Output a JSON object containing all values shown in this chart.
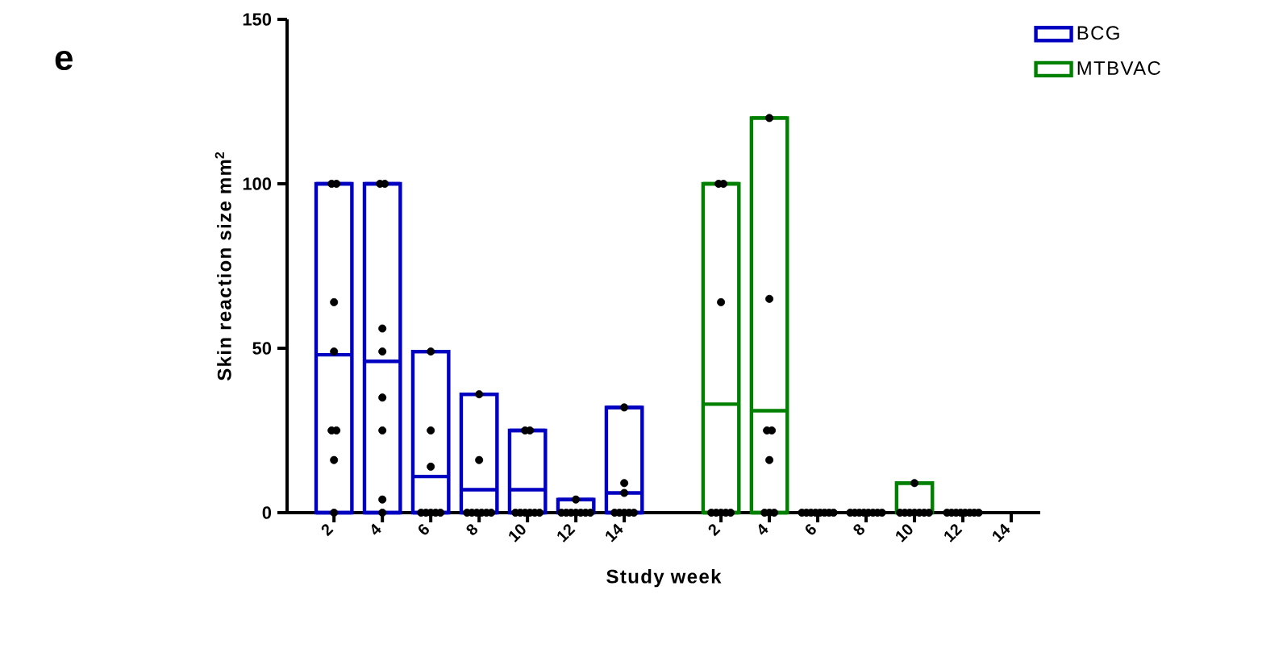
{
  "chart_data": {
    "type": "box",
    "xlabel": "Study week",
    "ylabel": "Skin reaction size mm$^{2}$",
    "annotations": [
      "e"
    ],
    "categories": [
      "2",
      "4",
      "6",
      "8",
      "10",
      "12",
      "14",
      null,
      "2",
      "4",
      "6",
      "8",
      "10",
      "12",
      "14"
    ],
    "ylim": [
      0,
      150
    ],
    "yticks": [
      0,
      50,
      100,
      150
    ],
    "legend": "top right",
    "marker": "circle",
    "series": [
      {
        "name": "BCG",
        "color": "#0000c0",
        "boxes": [
          {
            "low": 0,
            "q1": 0,
            "median": 48,
            "q3": 100,
            "high": 100,
            "outliers": [
              100,
              100,
              64,
              49,
              25,
              25,
              16,
              0
            ]
          },
          {
            "low": 0,
            "q1": 0,
            "median": 46,
            "q3": 100,
            "high": 100,
            "outliers": [
              100,
              100,
              56,
              49,
              35,
              25,
              4,
              0
            ]
          },
          {
            "low": 0,
            "q1": 0,
            "median": 11,
            "q3": 49,
            "high": 49,
            "outliers": [
              49,
              25,
              14,
              0,
              0,
              0,
              0,
              0
            ]
          },
          {
            "low": 0,
            "q1": 0,
            "median": 7,
            "q3": 36,
            "high": 36,
            "outliers": [
              36,
              16,
              0,
              0,
              0,
              0,
              0,
              0
            ]
          },
          {
            "low": 0,
            "q1": 0,
            "median": 7,
            "q3": 25,
            "high": 25,
            "outliers": [
              25,
              25,
              0,
              0,
              0,
              0,
              0,
              0
            ]
          },
          {
            "low": 0,
            "q1": 0,
            "median": 0,
            "q3": 4,
            "high": 4,
            "outliers": [
              4,
              0,
              0,
              0,
              0,
              0,
              0,
              0
            ]
          },
          {
            "low": 0,
            "q1": 0,
            "median": 6,
            "q3": 32,
            "high": 32,
            "outliers": [
              32,
              9,
              6,
              0,
              0,
              0,
              0,
              0
            ]
          },
          null,
          null,
          null,
          null,
          null,
          null,
          null,
          null
        ]
      },
      {
        "name": "MTBVAC",
        "color": "#008000",
        "boxes": [
          null,
          null,
          null,
          null,
          null,
          null,
          null,
          null,
          {
            "low": 0,
            "q1": 0,
            "median": 33,
            "q3": 100,
            "high": 100,
            "outliers": [
              100,
              100,
              64,
              0,
              0,
              0,
              0,
              0
            ]
          },
          {
            "low": 0,
            "q1": 0,
            "median": 31,
            "q3": 120,
            "high": 120,
            "outliers": [
              120,
              65,
              25,
              25,
              16,
              0,
              0,
              0
            ]
          },
          {
            "low": 0,
            "q1": 0,
            "median": 0,
            "q3": 0,
            "high": 0,
            "outliers": [
              0,
              0,
              0,
              0,
              0,
              0,
              0,
              0
            ]
          },
          {
            "low": 0,
            "q1": 0,
            "median": 0,
            "q3": 0,
            "high": 0,
            "outliers": [
              0,
              0,
              0,
              0,
              0,
              0,
              0,
              0
            ]
          },
          {
            "low": 0,
            "q1": 0,
            "median": 0,
            "q3": 9,
            "high": 9,
            "outliers": [
              9,
              0,
              0,
              0,
              0,
              0,
              0,
              0
            ]
          },
          {
            "low": 0,
            "q1": 0,
            "median": 0,
            "q3": 0,
            "high": 0,
            "outliers": [
              0,
              0,
              0,
              0,
              0,
              0,
              0,
              0
            ]
          },
          null
        ]
      }
    ]
  }
}
